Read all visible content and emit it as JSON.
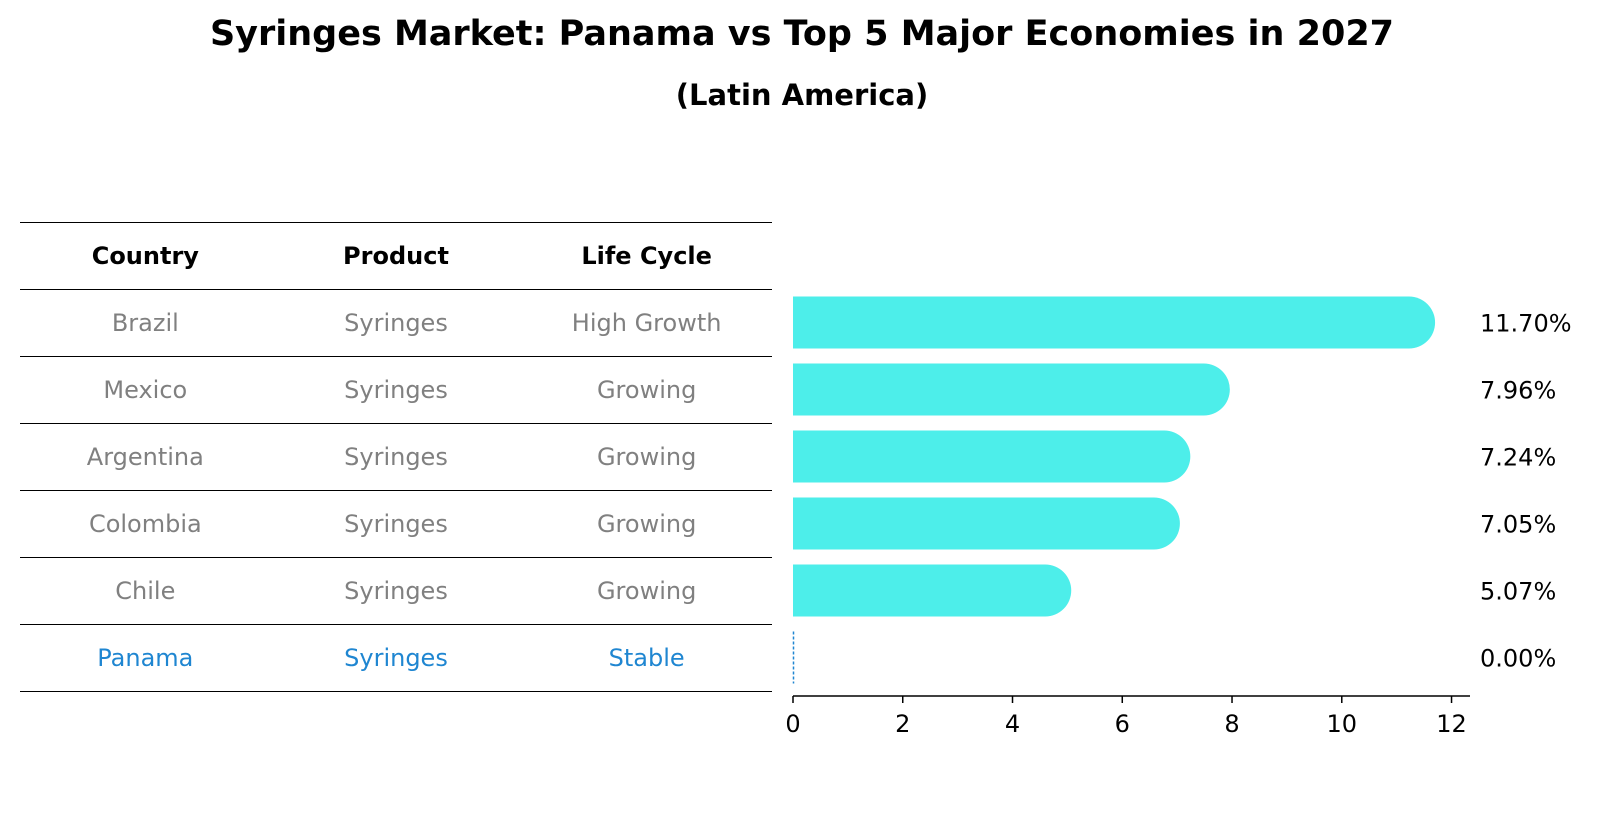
{
  "title": "Syringes Market: Panama vs Top 5 Major Economies in 2027",
  "subtitle": "(Latin America)",
  "table": {
    "headers": [
      "Country",
      "Product",
      "Life Cycle"
    ],
    "rows": [
      {
        "country": "Brazil",
        "product": "Syringes",
        "life_cycle": "High Growth"
      },
      {
        "country": "Mexico",
        "product": "Syringes",
        "life_cycle": "Growing"
      },
      {
        "country": "Argentina",
        "product": "Syringes",
        "life_cycle": "Growing"
      },
      {
        "country": "Colombia",
        "product": "Syringes",
        "life_cycle": "Growing"
      },
      {
        "country": "Chile",
        "product": "Syringes",
        "life_cycle": "Growing"
      },
      {
        "country": "Panama",
        "product": "Syringes",
        "life_cycle": "Stable"
      }
    ]
  },
  "chart_data": {
    "type": "bar",
    "orientation": "horizontal",
    "categories": [
      "Brazil",
      "Mexico",
      "Argentina",
      "Colombia",
      "Chile",
      "Panama"
    ],
    "values": [
      11.7,
      7.96,
      7.24,
      7.05,
      5.07,
      0.0
    ],
    "value_labels": [
      "11.70%",
      "7.96%",
      "7.24%",
      "7.05%",
      "5.07%",
      "0.00%"
    ],
    "xlim": [
      0,
      12.3
    ],
    "xticks": [
      0,
      2,
      4,
      6,
      8,
      10,
      12
    ],
    "grid": false,
    "bar_color": "#4deeea",
    "highlight_color": "#1f86d1"
  }
}
